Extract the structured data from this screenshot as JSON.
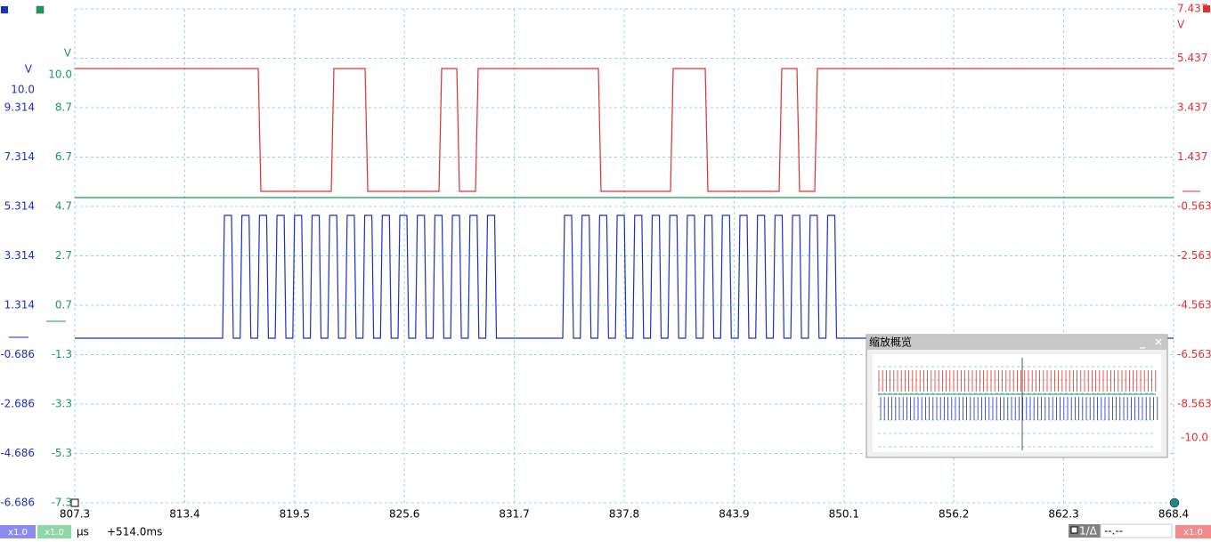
{
  "channels": {
    "blue": {
      "unit": "V",
      "top": "10.0",
      "labels": [
        "9.314",
        "7.314",
        "5.314",
        "3.314",
        "1.314",
        "-0.686",
        "-2.686",
        "-4.686",
        "-6.686"
      ]
    },
    "green": {
      "unit": "V",
      "labels": [
        "10.0",
        "8.7",
        "6.7",
        "4.7",
        "2.7",
        "0.7",
        "-1.3",
        "-3.3",
        "-5.3",
        "-7.3"
      ]
    },
    "red": {
      "unit": "V",
      "labels": [
        "7.437",
        "5.437",
        "3.437",
        "1.437",
        "-0.563",
        "-2.563",
        "-4.563",
        "-6.563",
        "-8.563"
      ],
      "bottom": "-10.0"
    }
  },
  "x_axis": {
    "labels": [
      "807.3",
      "813.4",
      "819.5",
      "825.6",
      "831.7",
      "837.8",
      "843.9",
      "850.1",
      "856.2",
      "862.3",
      "868.4"
    ]
  },
  "overview": {
    "title": "缩放概览"
  },
  "status_bar": {
    "blue_scale": "x1.0",
    "green_scale": "x1.0",
    "unit": "µs",
    "offset": "+514.0ms",
    "cursor_label": "1/Δ",
    "cursor_value": "--.--",
    "red_scale": "x1.0"
  }
}
